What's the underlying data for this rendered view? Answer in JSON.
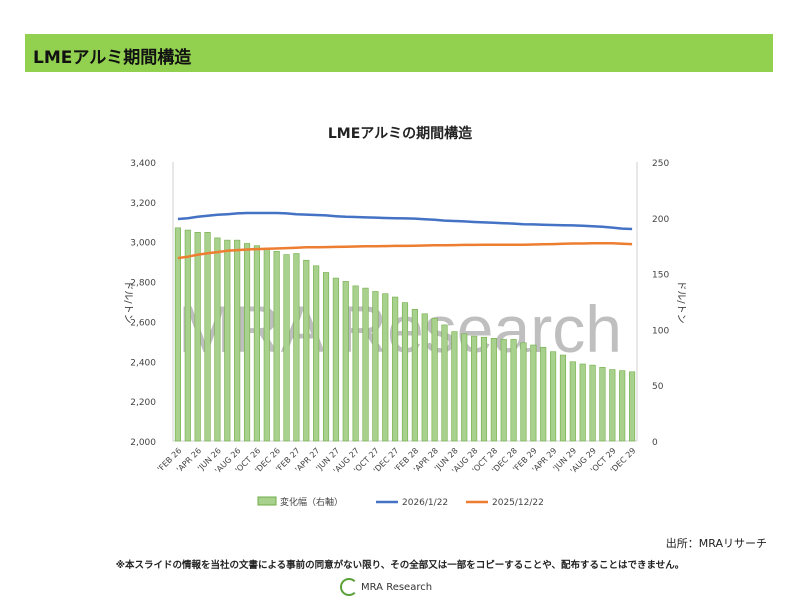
{
  "header": {
    "title": "LMEアルミ期間構造"
  },
  "footer": {
    "source": "出所：MRAリサーチ",
    "disclaimer": "※本スライドの情報を当社の文書による事前の同意がない限り、その全部又は一部をコピーすることや、配布することはできません。",
    "logo": "MRA Research"
  },
  "colors": {
    "header": "#92d050",
    "bar": "#a9d18e",
    "bar_edge": "#70ad47",
    "blue": "#4472c4",
    "orange": "#ed7d31"
  },
  "chart_data": {
    "type": "bar+line",
    "title": "LMEアルミの期間構造",
    "watermark": "MRA Research",
    "ylabel": "ドル/トン",
    "y2label": "ドル/トン",
    "ylim": [
      2000,
      3400
    ],
    "yticks": [
      "2,000",
      "2,200",
      "2,400",
      "2,600",
      "2,800",
      "3,000",
      "3,200",
      "3,400"
    ],
    "y2lim": [
      0,
      250
    ],
    "y2ticks": [
      "0",
      "50",
      "100",
      "150",
      "200",
      "250"
    ],
    "xticks": [
      "'FEB 26",
      "'APR 26",
      "'JUN 26",
      "'AUG 26",
      "'OCT 26",
      "'DEC 26",
      "'FEB 27",
      "'APR 27",
      "'JUN 27",
      "'AUG 27",
      "'OCT 27",
      "'DEC 27",
      "'FEB 28",
      "'APR 28",
      "'JUN 28",
      "'AUG 28",
      "'OCT 28",
      "'DEC 28",
      "'FEB 29",
      "'APR 29",
      "'JUN 29",
      "'AUG 29",
      "'OCT 29",
      "'DEC 29"
    ],
    "legend": "bottom",
    "series": [
      {
        "name": "変化幅（右軸）",
        "type": "bar",
        "axis": "right",
        "values": [
          191,
          189,
          187,
          187,
          182,
          180,
          180,
          177,
          175,
          172,
          170,
          167,
          168,
          162,
          157,
          151,
          146,
          143,
          139,
          137,
          134,
          132,
          129,
          124,
          118,
          114,
          110,
          104,
          98,
          96,
          94,
          93,
          92,
          91,
          91,
          88,
          86,
          84,
          80,
          77,
          71,
          69,
          68,
          66,
          64,
          63,
          62
        ]
      },
      {
        "name": "2026/1/22",
        "type": "line",
        "axis": "left",
        "values": [
          3114,
          3118,
          3125,
          3130,
          3135,
          3138,
          3142,
          3144,
          3144,
          3144,
          3144,
          3142,
          3138,
          3136,
          3134,
          3132,
          3128,
          3125,
          3124,
          3122,
          3121,
          3119,
          3118,
          3117,
          3116,
          3113,
          3110,
          3106,
          3104,
          3102,
          3099,
          3097,
          3095,
          3093,
          3091,
          3088,
          3087,
          3085,
          3084,
          3083,
          3082,
          3080,
          3078,
          3075,
          3071,
          3066,
          3064
        ]
      },
      {
        "name": "2025/12/22",
        "type": "line",
        "axis": "left",
        "values": [
          2918,
          2925,
          2935,
          2942,
          2948,
          2955,
          2958,
          2961,
          2963,
          2965,
          2966,
          2968,
          2970,
          2972,
          2972,
          2973,
          2974,
          2975,
          2976,
          2977,
          2977,
          2978,
          2979,
          2979,
          2980,
          2981,
          2982,
          2982,
          2983,
          2984,
          2984,
          2985,
          2985,
          2985,
          2985,
          2985,
          2986,
          2987,
          2988,
          2990,
          2991,
          2991,
          2992,
          2992,
          2992,
          2990,
          2988
        ]
      }
    ]
  }
}
